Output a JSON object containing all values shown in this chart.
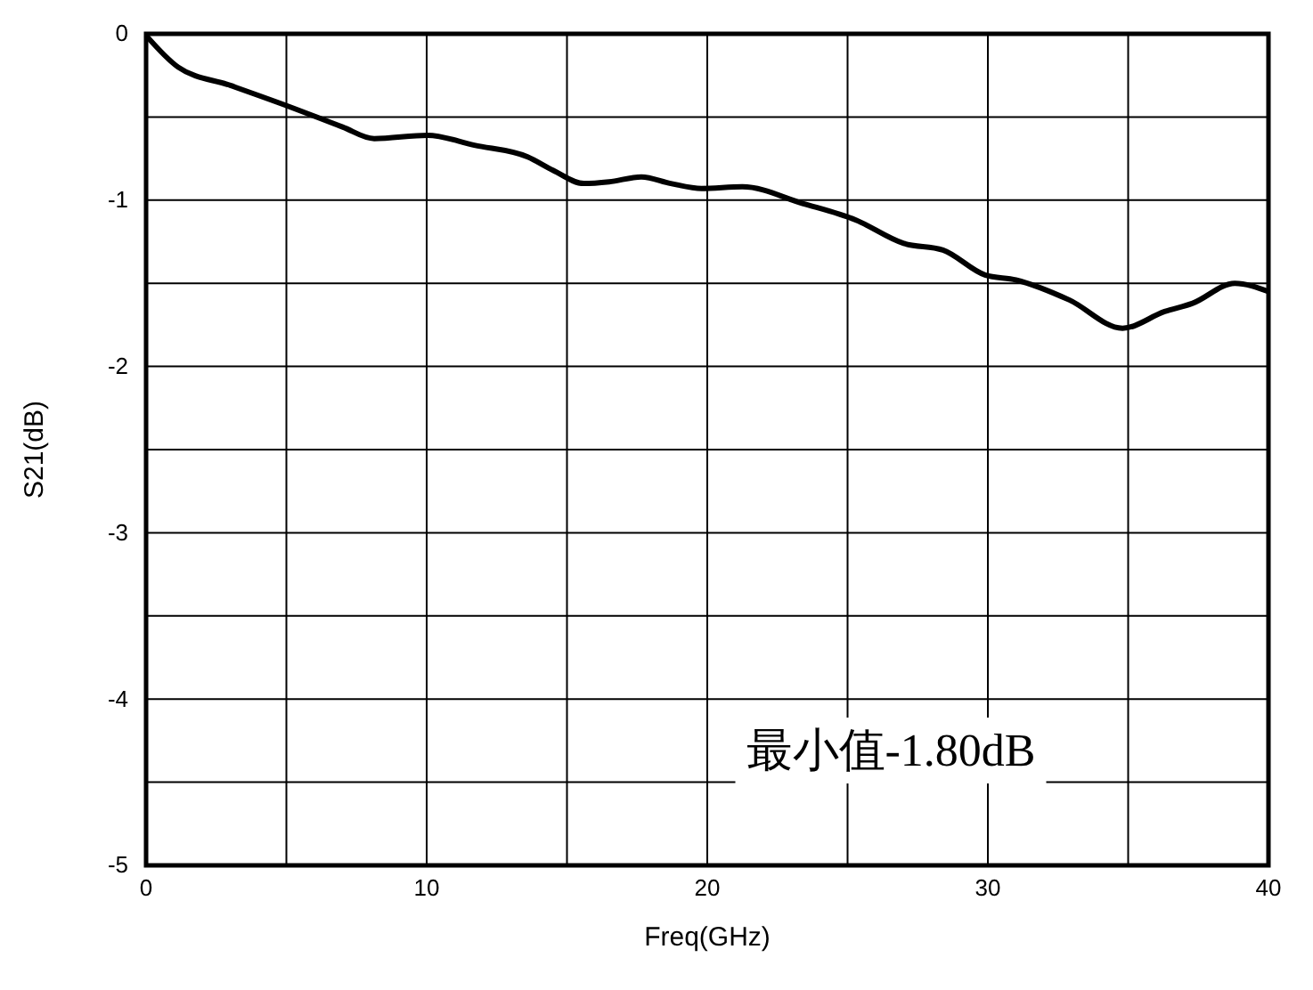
{
  "chart_data": {
    "type": "line",
    "xlabel": "Freq(GHz)",
    "ylabel": "S21(dB)",
    "xlim": [
      0,
      40
    ],
    "ylim": [
      -5,
      0
    ],
    "xticks": [
      0,
      {
        "value": 5,
        "label": null
      },
      10,
      {
        "value": 15,
        "label": null
      },
      20,
      {
        "value": 25,
        "label": null
      },
      30,
      {
        "value": 35,
        "label": null
      },
      40
    ],
    "yticks": [
      -5,
      {
        "value": -4.5,
        "label": null
      },
      -4,
      {
        "value": -3.5,
        "label": null
      },
      -3,
      {
        "value": -2.5,
        "label": null
      },
      -2,
      {
        "value": -1.5,
        "label": null
      },
      -1,
      {
        "value": -0.5,
        "label": null
      },
      0
    ],
    "grid": true,
    "marker": "none",
    "line_style": "solid",
    "annotations": [
      "最小值-1.80dB"
    ],
    "series": [
      {
        "color": "#000000",
        "x": [
          0,
          1.14,
          3,
          5.14,
          7,
          8.13,
          10.03,
          11.7,
          13.6,
          14.5,
          15.6,
          16.5,
          17.65,
          18.7,
          19.8,
          21.25,
          23.4,
          25.3,
          27.0,
          28.4,
          29.9,
          31.0,
          32.9,
          34.8,
          36.3,
          37.3,
          38.8,
          40
        ],
        "values": [
          -0.01,
          -0.2,
          -0.31,
          -0.44,
          -0.56,
          -0.63,
          -0.61,
          -0.67,
          -0.74,
          -0.82,
          -0.9,
          -0.89,
          -0.86,
          -0.9,
          -0.93,
          -0.92,
          -1.02,
          -1.12,
          -1.26,
          -1.3,
          -1.45,
          -1.48,
          -1.6,
          -1.77,
          -1.67,
          -1.62,
          -1.5,
          -1.55
        ]
      }
    ]
  }
}
